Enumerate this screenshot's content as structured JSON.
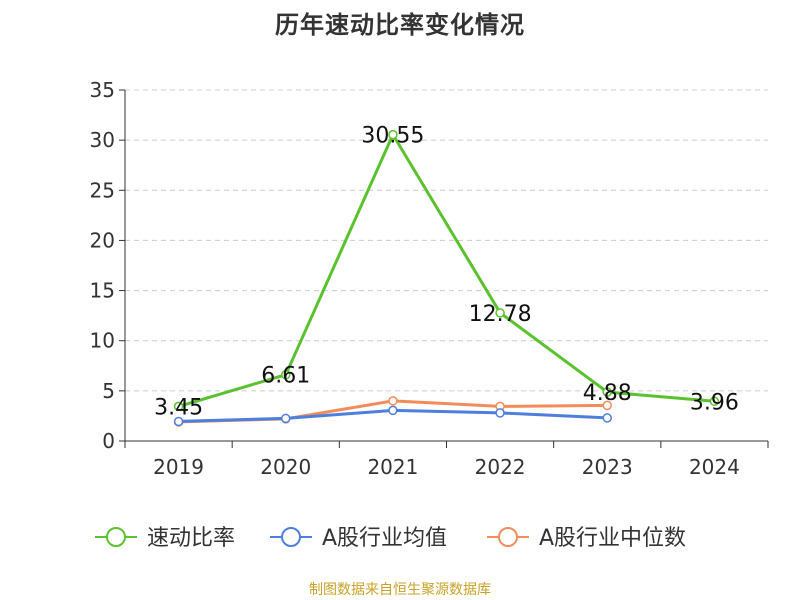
{
  "title": "历年速动比率变化情况",
  "source": "制图数据来自恒生聚源数据库",
  "chart_data": {
    "type": "line",
    "title": "历年速动比率变化情况",
    "categories": [
      "2019",
      "2020",
      "2021",
      "2022",
      "2023",
      "2024"
    ],
    "ylim": [
      0,
      35
    ],
    "yticks": [
      0,
      5,
      10,
      15,
      20,
      25,
      30,
      35
    ],
    "grid": true,
    "legend_position": "bottom",
    "series": [
      {
        "name": "速动比率",
        "color": "#5ac22e",
        "values": [
          3.45,
          6.61,
          30.55,
          12.78,
          4.88,
          3.96
        ],
        "labels": [
          "3.45",
          "6.61",
          "30.55",
          "12.78",
          "4.88",
          "3.96"
        ]
      },
      {
        "name": "A股行业均值",
        "color": "#4e7fdc",
        "values": [
          1.95,
          2.25,
          3.05,
          2.8,
          2.3,
          null
        ]
      },
      {
        "name": "A股行业中位数",
        "color": "#f28c5a",
        "values": [
          1.9,
          2.2,
          4.0,
          3.45,
          3.55,
          null
        ]
      }
    ]
  }
}
